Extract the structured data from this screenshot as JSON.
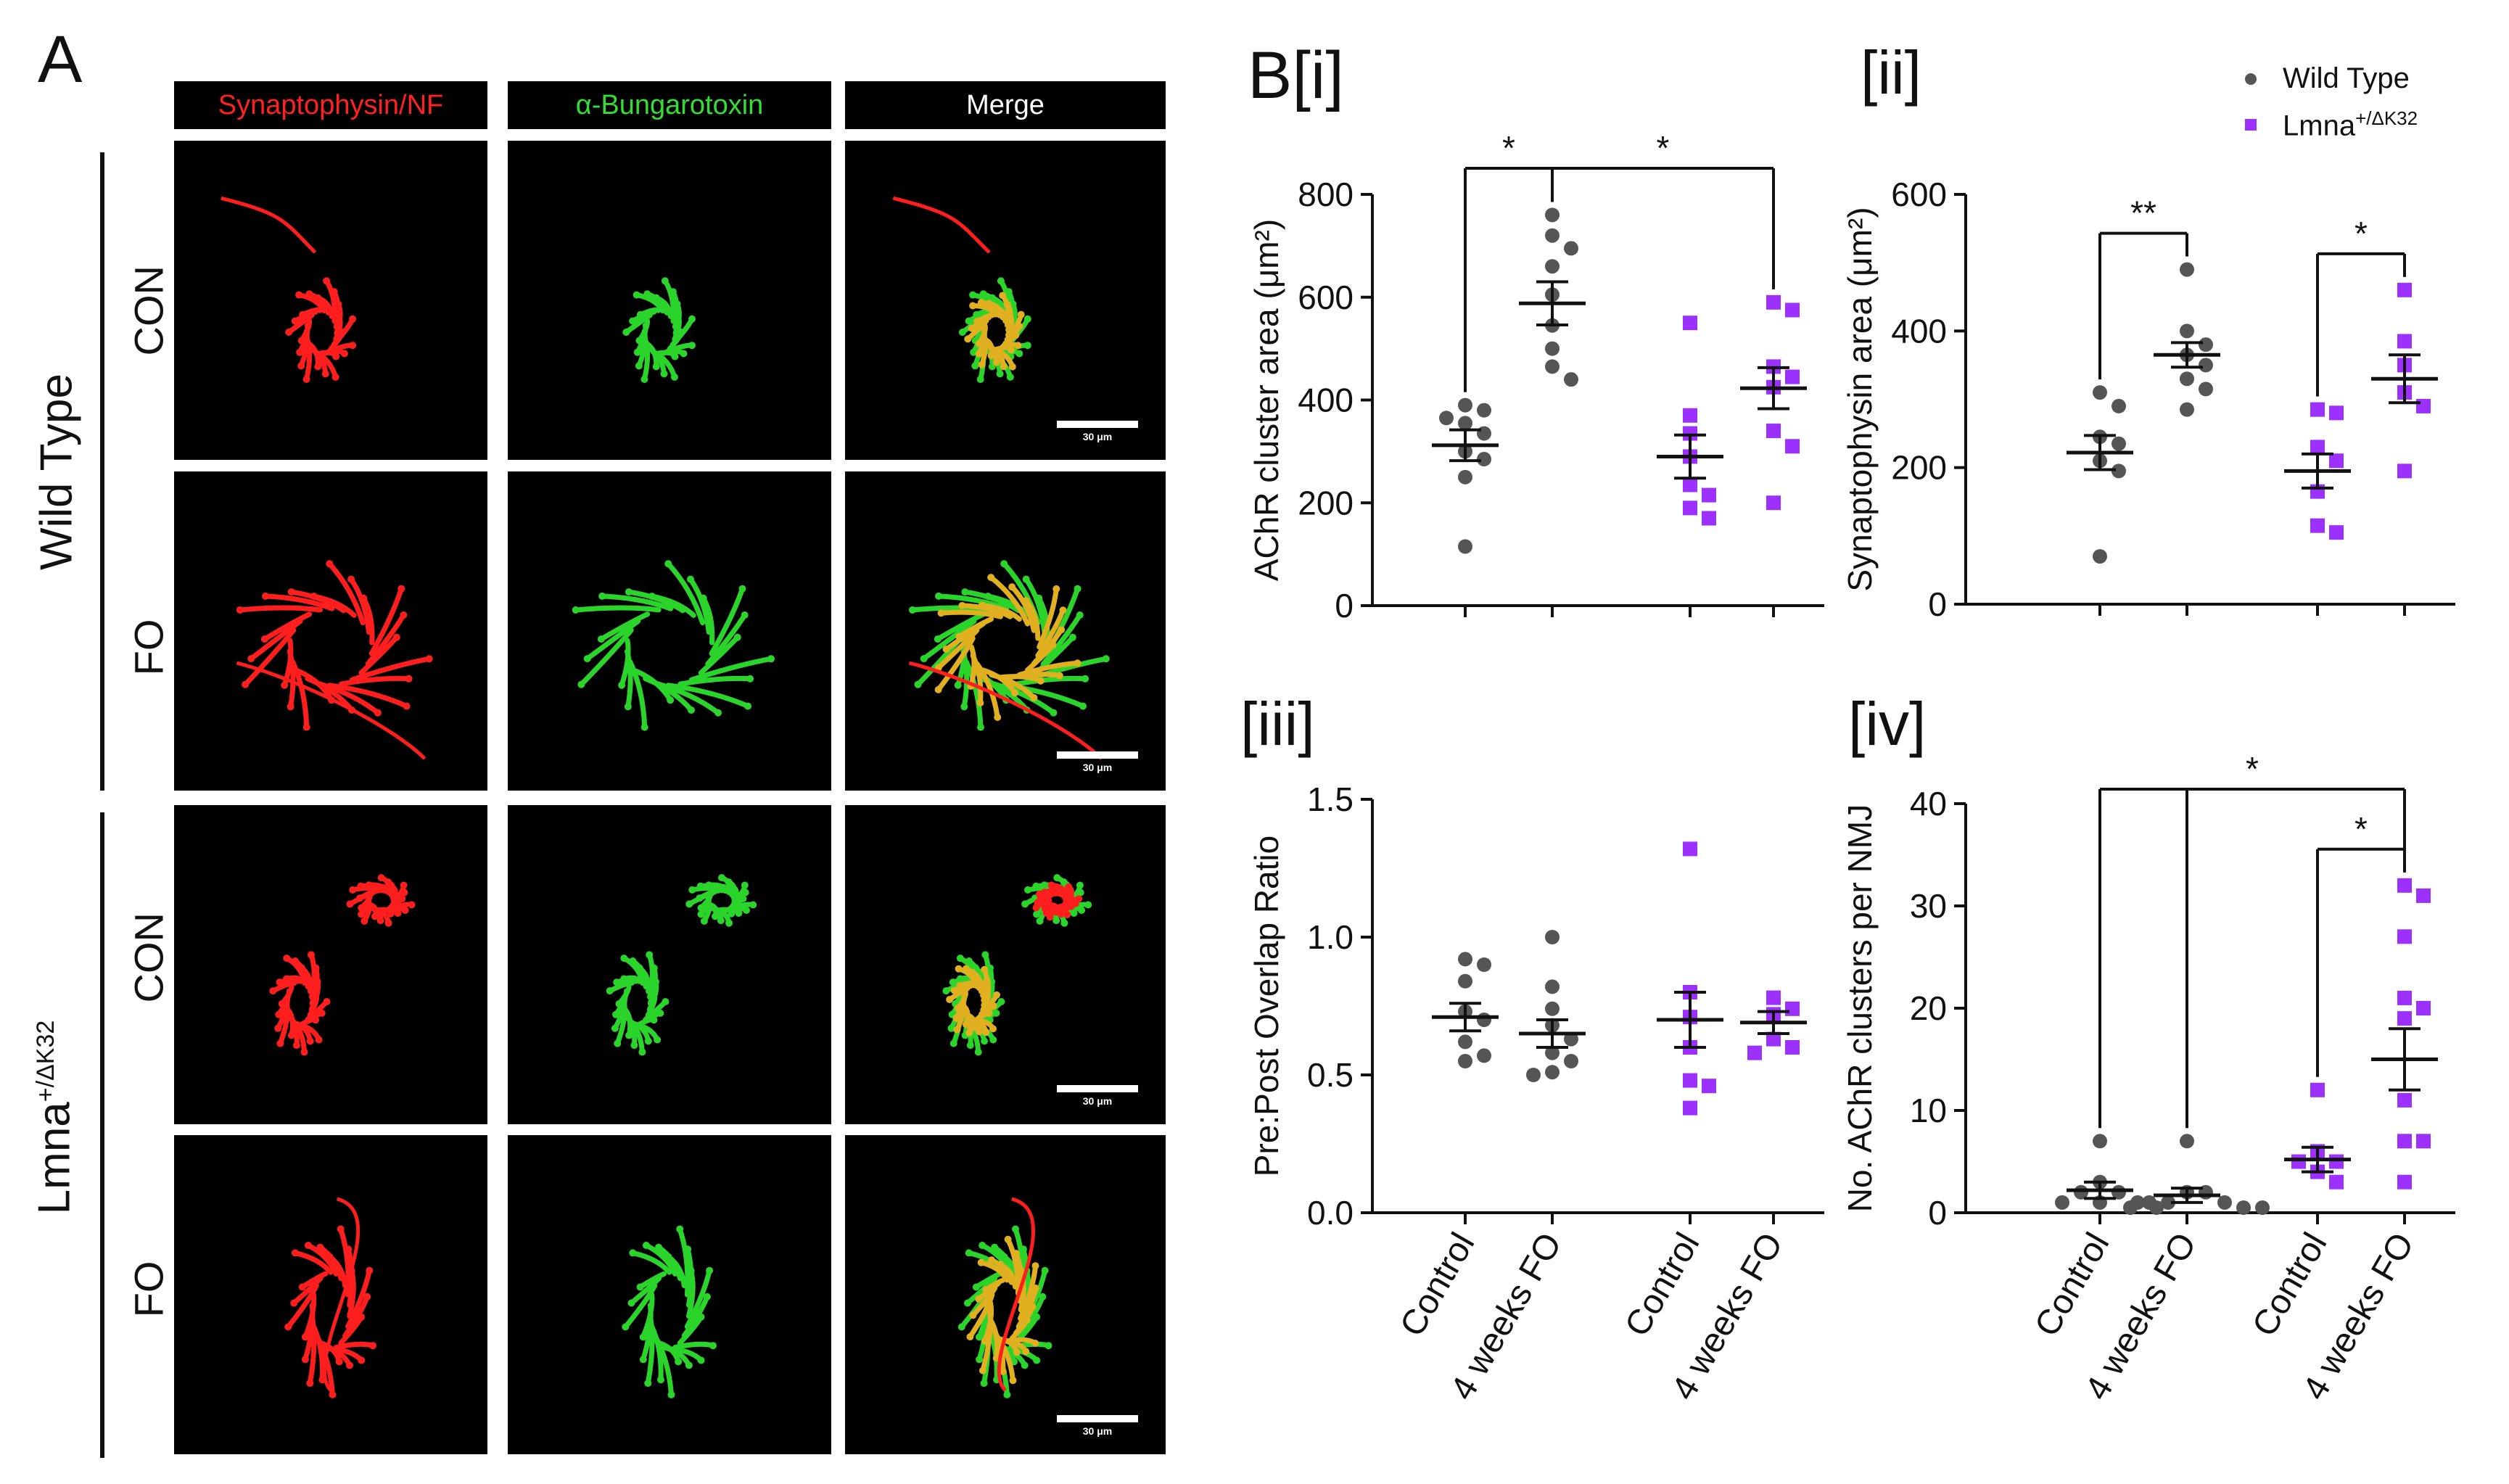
{
  "panel_a": {
    "letter": "A",
    "columns": [
      "Synaptophysin/NF",
      "α-Bungarotoxin",
      "Merge"
    ],
    "column_colors": [
      "#ff2020",
      "#33dd33",
      "#ffffff"
    ],
    "group_wildtype": "Wild Type",
    "group_lmna_base": "Lmna",
    "group_lmna_sup": "+/ΔK32",
    "rows": [
      "CON",
      "FO",
      "CON",
      "FO"
    ],
    "scalebar_text": "30 μm"
  },
  "panel_b": {
    "letter": "B[i]",
    "sub_ii": "[ii]",
    "sub_iii": "[iii]",
    "sub_iv": "[iv]"
  },
  "legend": {
    "wildtype": "Wild Type",
    "lmna_base": "Lmna",
    "lmna_sup": "+/ΔK32",
    "wildtype_color": "#555555",
    "lmna_color": "#9b30ff"
  },
  "chart_data": [
    {
      "id": "i",
      "type": "scatter",
      "ylabel": "AChR cluster area (μm²)",
      "ylim": [
        0,
        800
      ],
      "yticks": [
        0,
        200,
        400,
        600,
        800
      ],
      "categories": [
        "Control",
        "4 weeks FO",
        "Control",
        "4 weeks FO"
      ],
      "groups": [
        {
          "series": "Wild Type",
          "mean": 312,
          "sem": 30,
          "points": [
            390,
            380,
            365,
            355,
            335,
            300,
            285,
            250,
            115
          ]
        },
        {
          "series": "Wild Type",
          "mean": 588,
          "sem": 42,
          "points": [
            760,
            720,
            695,
            660,
            605,
            545,
            500,
            465,
            440
          ]
        },
        {
          "series": "Lmna+/ΔK32",
          "mean": 290,
          "sem": 42,
          "points": [
            550,
            370,
            335,
            290,
            235,
            215,
            190,
            170
          ]
        },
        {
          "series": "Lmna+/ΔK32",
          "mean": 423,
          "sem": 40,
          "points": [
            590,
            575,
            465,
            445,
            425,
            340,
            310,
            200
          ]
        }
      ],
      "significance": [
        {
          "label": "*",
          "from": 0,
          "to": 1
        },
        {
          "label": "*",
          "from": 1,
          "to": 3
        }
      ]
    },
    {
      "id": "ii",
      "type": "scatter",
      "ylabel": "Synaptophysin area (μm²)",
      "ylim": [
        0,
        600
      ],
      "yticks": [
        0,
        200,
        400,
        600
      ],
      "categories": [
        "Control",
        "4 weeks FO",
        "Control",
        "4 weeks FO"
      ],
      "groups": [
        {
          "series": "Wild Type",
          "mean": 222,
          "sem": 25,
          "points": [
            310,
            290,
            245,
            235,
            210,
            195,
            70
          ]
        },
        {
          "series": "Wild Type",
          "mean": 365,
          "sem": 18,
          "points": [
            490,
            400,
            380,
            365,
            350,
            330,
            315,
            285
          ]
        },
        {
          "series": "Lmna+/ΔK32",
          "mean": 195,
          "sem": 25,
          "points": [
            285,
            280,
            230,
            210,
            165,
            115,
            105
          ]
        },
        {
          "series": "Lmna+/ΔK32",
          "mean": 330,
          "sem": 35,
          "points": [
            460,
            385,
            350,
            310,
            290,
            195
          ]
        }
      ],
      "significance": [
        {
          "label": "**",
          "from": 0,
          "to": 1
        },
        {
          "label": "*",
          "from": 2,
          "to": 3
        }
      ]
    },
    {
      "id": "iii",
      "type": "scatter",
      "ylabel": "Pre:Post Overlap Ratio",
      "ylim": [
        0,
        1.5
      ],
      "yticks": [
        0.0,
        0.5,
        1.0,
        1.5
      ],
      "categories": [
        "Control",
        "4 weeks FO",
        "Control",
        "4 weeks FO"
      ],
      "groups": [
        {
          "series": "Wild Type",
          "mean": 0.71,
          "sem": 0.05,
          "points": [
            0.92,
            0.9,
            0.84,
            0.73,
            0.7,
            0.62,
            0.57,
            0.55
          ]
        },
        {
          "series": "Wild Type",
          "mean": 0.65,
          "sem": 0.05,
          "points": [
            1.0,
            0.82,
            0.74,
            0.68,
            0.63,
            0.58,
            0.55,
            0.51,
            0.5
          ]
        },
        {
          "series": "Lmna+/ΔK32",
          "mean": 0.7,
          "sem": 0.1,
          "points": [
            1.32,
            0.8,
            0.71,
            0.6,
            0.48,
            0.46,
            0.38
          ]
        },
        {
          "series": "Lmna+/ΔK32",
          "mean": 0.69,
          "sem": 0.04,
          "points": [
            0.78,
            0.74,
            0.72,
            0.63,
            0.6,
            0.58
          ]
        }
      ],
      "significance": []
    },
    {
      "id": "iv",
      "type": "scatter",
      "ylabel": "No. AChR clusters per NMJ",
      "ylim": [
        0,
        40
      ],
      "yticks": [
        0,
        10,
        20,
        30,
        40
      ],
      "categories": [
        "Control",
        "4 weeks FO",
        "Control",
        "4 weeks FO"
      ],
      "groups": [
        {
          "series": "Wild Type",
          "mean": 2.2,
          "sem": 0.8,
          "points": [
            7,
            3,
            2,
            2,
            1,
            1,
            1,
            0.5
          ]
        },
        {
          "series": "Wild Type",
          "mean": 1.7,
          "sem": 0.7,
          "points": [
            7,
            2,
            2,
            1,
            1,
            1,
            0.5,
            0.5,
            0.5
          ]
        },
        {
          "series": "Lmna+/ΔK32",
          "mean": 5.2,
          "sem": 1.2,
          "points": [
            12,
            6,
            5,
            5,
            4,
            3
          ]
        },
        {
          "series": "Lmna+/ΔK32",
          "mean": 15,
          "sem": 3,
          "points": [
            32,
            31,
            27,
            21,
            20,
            19,
            11,
            7,
            7,
            3
          ]
        }
      ],
      "significance": [
        {
          "label": "*",
          "from": 2,
          "to": 3
        },
        {
          "label": "*",
          "from": 0,
          "to": 3,
          "through": [
            1
          ]
        }
      ]
    }
  ]
}
